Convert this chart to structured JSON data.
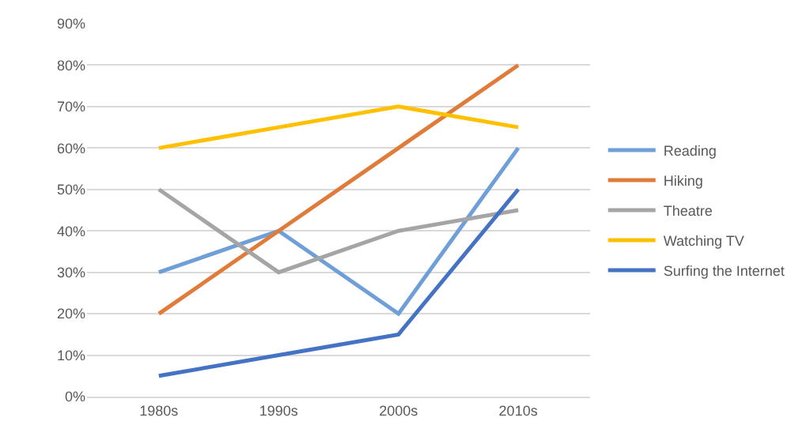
{
  "chart_data": {
    "type": "line",
    "categories": [
      "1980s",
      "1990s",
      "2000s",
      "2010s"
    ],
    "series": [
      {
        "name": "Reading",
        "color": "#6f9fd8",
        "values": [
          30,
          40,
          20,
          60
        ]
      },
      {
        "name": "Hiking",
        "color": "#e07b39",
        "values": [
          20,
          40,
          60,
          80
        ]
      },
      {
        "name": "Theatre",
        "color": "#a5a5a5",
        "values": [
          50,
          30,
          40,
          45
        ]
      },
      {
        "name": "Watching TV",
        "color": "#ffc000",
        "values": [
          60,
          65,
          70,
          65
        ]
      },
      {
        "name": "Surfing the Internet",
        "color": "#4472c4",
        "values": [
          5,
          10,
          15,
          50
        ]
      }
    ],
    "ylim": [
      0,
      90
    ],
    "yticks": [
      {
        "value": 0,
        "label": "0%"
      },
      {
        "value": 10,
        "label": "10%"
      },
      {
        "value": 20,
        "label": "20%"
      },
      {
        "value": 30,
        "label": "30%"
      },
      {
        "value": 40,
        "label": "40%"
      },
      {
        "value": 50,
        "label": "50%"
      },
      {
        "value": 60,
        "label": "60%"
      },
      {
        "value": 70,
        "label": "70%"
      },
      {
        "value": 80,
        "label": "80%"
      },
      {
        "value": 90,
        "label": "90%"
      }
    ],
    "grid": "y",
    "legend": "right",
    "line_style": "solid"
  }
}
